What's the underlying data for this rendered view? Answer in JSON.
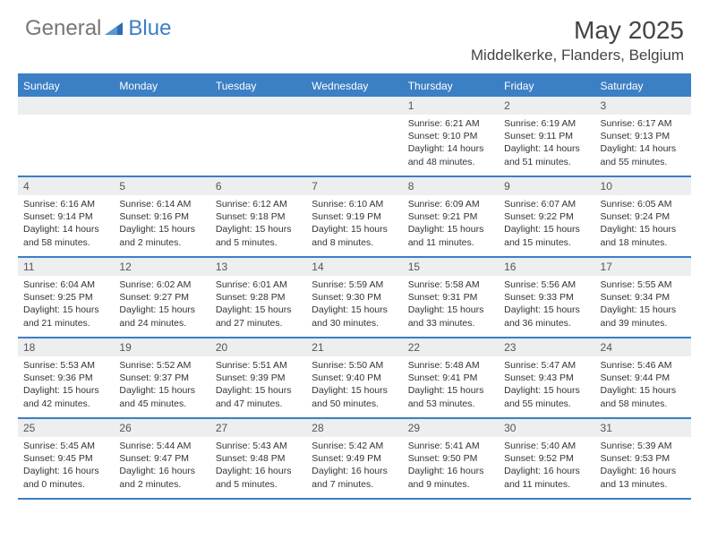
{
  "brand": {
    "part1": "General",
    "part2": "Blue"
  },
  "title": "May 2025",
  "location": "Middelkerke, Flanders, Belgium",
  "colors": {
    "accent": "#3b7fc4",
    "header_bg": "#3b7fc4",
    "daynum_bg": "#eceeef",
    "text": "#333333",
    "background": "#ffffff"
  },
  "weekdays": [
    "Sunday",
    "Monday",
    "Tuesday",
    "Wednesday",
    "Thursday",
    "Friday",
    "Saturday"
  ],
  "weeks": [
    [
      {
        "n": "",
        "sr": "",
        "ss": "",
        "d1": "",
        "d2": ""
      },
      {
        "n": "",
        "sr": "",
        "ss": "",
        "d1": "",
        "d2": ""
      },
      {
        "n": "",
        "sr": "",
        "ss": "",
        "d1": "",
        "d2": ""
      },
      {
        "n": "",
        "sr": "",
        "ss": "",
        "d1": "",
        "d2": ""
      },
      {
        "n": "1",
        "sr": "Sunrise: 6:21 AM",
        "ss": "Sunset: 9:10 PM",
        "d1": "Daylight: 14 hours",
        "d2": "and 48 minutes."
      },
      {
        "n": "2",
        "sr": "Sunrise: 6:19 AM",
        "ss": "Sunset: 9:11 PM",
        "d1": "Daylight: 14 hours",
        "d2": "and 51 minutes."
      },
      {
        "n": "3",
        "sr": "Sunrise: 6:17 AM",
        "ss": "Sunset: 9:13 PM",
        "d1": "Daylight: 14 hours",
        "d2": "and 55 minutes."
      }
    ],
    [
      {
        "n": "4",
        "sr": "Sunrise: 6:16 AM",
        "ss": "Sunset: 9:14 PM",
        "d1": "Daylight: 14 hours",
        "d2": "and 58 minutes."
      },
      {
        "n": "5",
        "sr": "Sunrise: 6:14 AM",
        "ss": "Sunset: 9:16 PM",
        "d1": "Daylight: 15 hours",
        "d2": "and 2 minutes."
      },
      {
        "n": "6",
        "sr": "Sunrise: 6:12 AM",
        "ss": "Sunset: 9:18 PM",
        "d1": "Daylight: 15 hours",
        "d2": "and 5 minutes."
      },
      {
        "n": "7",
        "sr": "Sunrise: 6:10 AM",
        "ss": "Sunset: 9:19 PM",
        "d1": "Daylight: 15 hours",
        "d2": "and 8 minutes."
      },
      {
        "n": "8",
        "sr": "Sunrise: 6:09 AM",
        "ss": "Sunset: 9:21 PM",
        "d1": "Daylight: 15 hours",
        "d2": "and 11 minutes."
      },
      {
        "n": "9",
        "sr": "Sunrise: 6:07 AM",
        "ss": "Sunset: 9:22 PM",
        "d1": "Daylight: 15 hours",
        "d2": "and 15 minutes."
      },
      {
        "n": "10",
        "sr": "Sunrise: 6:05 AM",
        "ss": "Sunset: 9:24 PM",
        "d1": "Daylight: 15 hours",
        "d2": "and 18 minutes."
      }
    ],
    [
      {
        "n": "11",
        "sr": "Sunrise: 6:04 AM",
        "ss": "Sunset: 9:25 PM",
        "d1": "Daylight: 15 hours",
        "d2": "and 21 minutes."
      },
      {
        "n": "12",
        "sr": "Sunrise: 6:02 AM",
        "ss": "Sunset: 9:27 PM",
        "d1": "Daylight: 15 hours",
        "d2": "and 24 minutes."
      },
      {
        "n": "13",
        "sr": "Sunrise: 6:01 AM",
        "ss": "Sunset: 9:28 PM",
        "d1": "Daylight: 15 hours",
        "d2": "and 27 minutes."
      },
      {
        "n": "14",
        "sr": "Sunrise: 5:59 AM",
        "ss": "Sunset: 9:30 PM",
        "d1": "Daylight: 15 hours",
        "d2": "and 30 minutes."
      },
      {
        "n": "15",
        "sr": "Sunrise: 5:58 AM",
        "ss": "Sunset: 9:31 PM",
        "d1": "Daylight: 15 hours",
        "d2": "and 33 minutes."
      },
      {
        "n": "16",
        "sr": "Sunrise: 5:56 AM",
        "ss": "Sunset: 9:33 PM",
        "d1": "Daylight: 15 hours",
        "d2": "and 36 minutes."
      },
      {
        "n": "17",
        "sr": "Sunrise: 5:55 AM",
        "ss": "Sunset: 9:34 PM",
        "d1": "Daylight: 15 hours",
        "d2": "and 39 minutes."
      }
    ],
    [
      {
        "n": "18",
        "sr": "Sunrise: 5:53 AM",
        "ss": "Sunset: 9:36 PM",
        "d1": "Daylight: 15 hours",
        "d2": "and 42 minutes."
      },
      {
        "n": "19",
        "sr": "Sunrise: 5:52 AM",
        "ss": "Sunset: 9:37 PM",
        "d1": "Daylight: 15 hours",
        "d2": "and 45 minutes."
      },
      {
        "n": "20",
        "sr": "Sunrise: 5:51 AM",
        "ss": "Sunset: 9:39 PM",
        "d1": "Daylight: 15 hours",
        "d2": "and 47 minutes."
      },
      {
        "n": "21",
        "sr": "Sunrise: 5:50 AM",
        "ss": "Sunset: 9:40 PM",
        "d1": "Daylight: 15 hours",
        "d2": "and 50 minutes."
      },
      {
        "n": "22",
        "sr": "Sunrise: 5:48 AM",
        "ss": "Sunset: 9:41 PM",
        "d1": "Daylight: 15 hours",
        "d2": "and 53 minutes."
      },
      {
        "n": "23",
        "sr": "Sunrise: 5:47 AM",
        "ss": "Sunset: 9:43 PM",
        "d1": "Daylight: 15 hours",
        "d2": "and 55 minutes."
      },
      {
        "n": "24",
        "sr": "Sunrise: 5:46 AM",
        "ss": "Sunset: 9:44 PM",
        "d1": "Daylight: 15 hours",
        "d2": "and 58 minutes."
      }
    ],
    [
      {
        "n": "25",
        "sr": "Sunrise: 5:45 AM",
        "ss": "Sunset: 9:45 PM",
        "d1": "Daylight: 16 hours",
        "d2": "and 0 minutes."
      },
      {
        "n": "26",
        "sr": "Sunrise: 5:44 AM",
        "ss": "Sunset: 9:47 PM",
        "d1": "Daylight: 16 hours",
        "d2": "and 2 minutes."
      },
      {
        "n": "27",
        "sr": "Sunrise: 5:43 AM",
        "ss": "Sunset: 9:48 PM",
        "d1": "Daylight: 16 hours",
        "d2": "and 5 minutes."
      },
      {
        "n": "28",
        "sr": "Sunrise: 5:42 AM",
        "ss": "Sunset: 9:49 PM",
        "d1": "Daylight: 16 hours",
        "d2": "and 7 minutes."
      },
      {
        "n": "29",
        "sr": "Sunrise: 5:41 AM",
        "ss": "Sunset: 9:50 PM",
        "d1": "Daylight: 16 hours",
        "d2": "and 9 minutes."
      },
      {
        "n": "30",
        "sr": "Sunrise: 5:40 AM",
        "ss": "Sunset: 9:52 PM",
        "d1": "Daylight: 16 hours",
        "d2": "and 11 minutes."
      },
      {
        "n": "31",
        "sr": "Sunrise: 5:39 AM",
        "ss": "Sunset: 9:53 PM",
        "d1": "Daylight: 16 hours",
        "d2": "and 13 minutes."
      }
    ]
  ]
}
